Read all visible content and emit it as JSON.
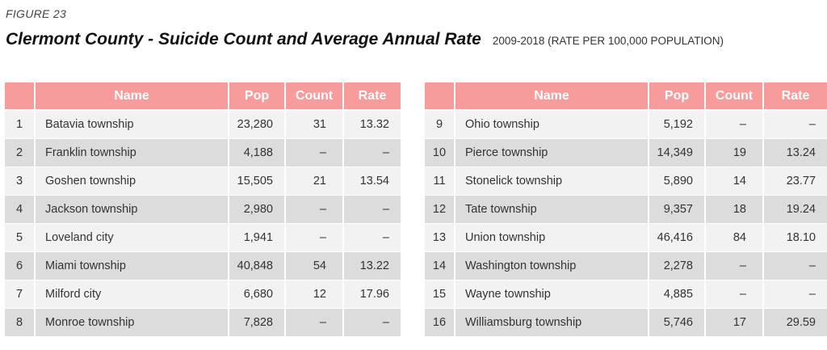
{
  "figure_label": "FIGURE 23",
  "title": "Clermont County - Suicide Count and Average Annual Rate",
  "subtitle": "2009-2018 (RATE PER 100,000 POPULATION)",
  "columns": {
    "idx": "",
    "name": "Name",
    "pop": "Pop",
    "count": "Count",
    "rate": "Rate"
  },
  "colors": {
    "header_bg": "#f79c9c",
    "row_light": "#f2f2f3",
    "row_dark": "#dcdcdd"
  },
  "left_rows": [
    {
      "idx": "1",
      "name": "Batavia township",
      "pop": "23,280",
      "count": "31",
      "rate": "13.32"
    },
    {
      "idx": "2",
      "name": "Franklin township",
      "pop": "4,188",
      "count": "–",
      "rate": "–"
    },
    {
      "idx": "3",
      "name": "Goshen township",
      "pop": "15,505",
      "count": "21",
      "rate": "13.54"
    },
    {
      "idx": "4",
      "name": "Jackson township",
      "pop": "2,980",
      "count": "–",
      "rate": "–"
    },
    {
      "idx": "5",
      "name": "Loveland city",
      "pop": "1,941",
      "count": "–",
      "rate": "–"
    },
    {
      "idx": "6",
      "name": "Miami township",
      "pop": "40,848",
      "count": "54",
      "rate": "13.22"
    },
    {
      "idx": "7",
      "name": "Milford city",
      "pop": "6,680",
      "count": "12",
      "rate": "17.96"
    },
    {
      "idx": "8",
      "name": "Monroe township",
      "pop": "7,828",
      "count": "–",
      "rate": "–"
    }
  ],
  "right_rows": [
    {
      "idx": "9",
      "name": "Ohio township",
      "pop": "5,192",
      "count": "–",
      "rate": "–"
    },
    {
      "idx": "10",
      "name": "Pierce township",
      "pop": "14,349",
      "count": "19",
      "rate": "13.24"
    },
    {
      "idx": "11",
      "name": "Stonelick township",
      "pop": "5,890",
      "count": "14",
      "rate": "23.77"
    },
    {
      "idx": "12",
      "name": "Tate township",
      "pop": "9,357",
      "count": "18",
      "rate": "19.24"
    },
    {
      "idx": "13",
      "name": "Union township",
      "pop": "46,416",
      "count": "84",
      "rate": "18.10"
    },
    {
      "idx": "14",
      "name": "Washington township",
      "pop": "2,278",
      "count": "–",
      "rate": "–"
    },
    {
      "idx": "15",
      "name": "Wayne township",
      "pop": "4,885",
      "count": "–",
      "rate": "–"
    },
    {
      "idx": "16",
      "name": "Williamsburg township",
      "pop": "5,746",
      "count": "17",
      "rate": "29.59"
    }
  ]
}
